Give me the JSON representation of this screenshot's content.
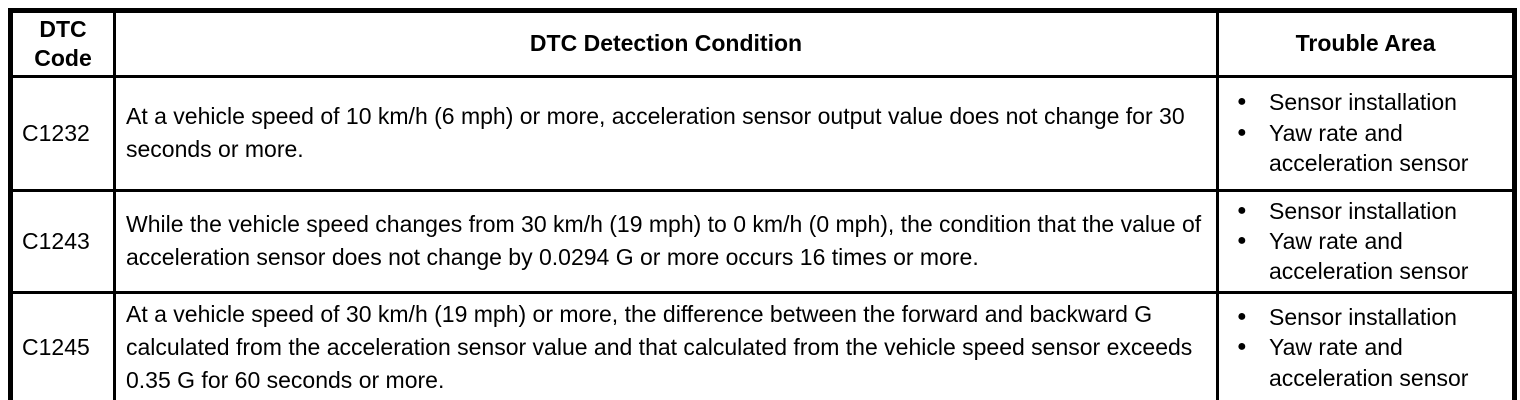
{
  "table": {
    "bullet_icon": "●",
    "colors": {
      "border": "#000000",
      "text": "#000000",
      "background": "#ffffff"
    },
    "headers": {
      "code": "DTC Code",
      "condition": "DTC Detection Condition",
      "trouble": "Trouble Area"
    },
    "rows": [
      {
        "code": "C1232",
        "condition": "At a vehicle speed of 10 km/h (6 mph) or more, acceleration sensor output value does not change for 30 seconds or more.",
        "trouble_area": [
          "Sensor installation",
          "Yaw rate and acceleration sensor"
        ]
      },
      {
        "code": "C1243",
        "condition": "While the vehicle speed changes from 30 km/h (19 mph) to 0 km/h (0 mph), the condition that the value of acceleration sensor does not change by 0.0294 G or more occurs 16 times or more.",
        "trouble_area": [
          "Sensor installation",
          "Yaw rate and acceleration sensor"
        ]
      },
      {
        "code": "C1245",
        "condition": "At a vehicle speed of 30 km/h (19 mph) or more, the difference between the forward and backward G calculated from the acceleration sensor value and that calculated from the vehicle speed sensor exceeds 0.35 G for 60 seconds or more.",
        "trouble_area": [
          "Sensor installation",
          "Yaw rate and acceleration sensor"
        ]
      }
    ]
  }
}
